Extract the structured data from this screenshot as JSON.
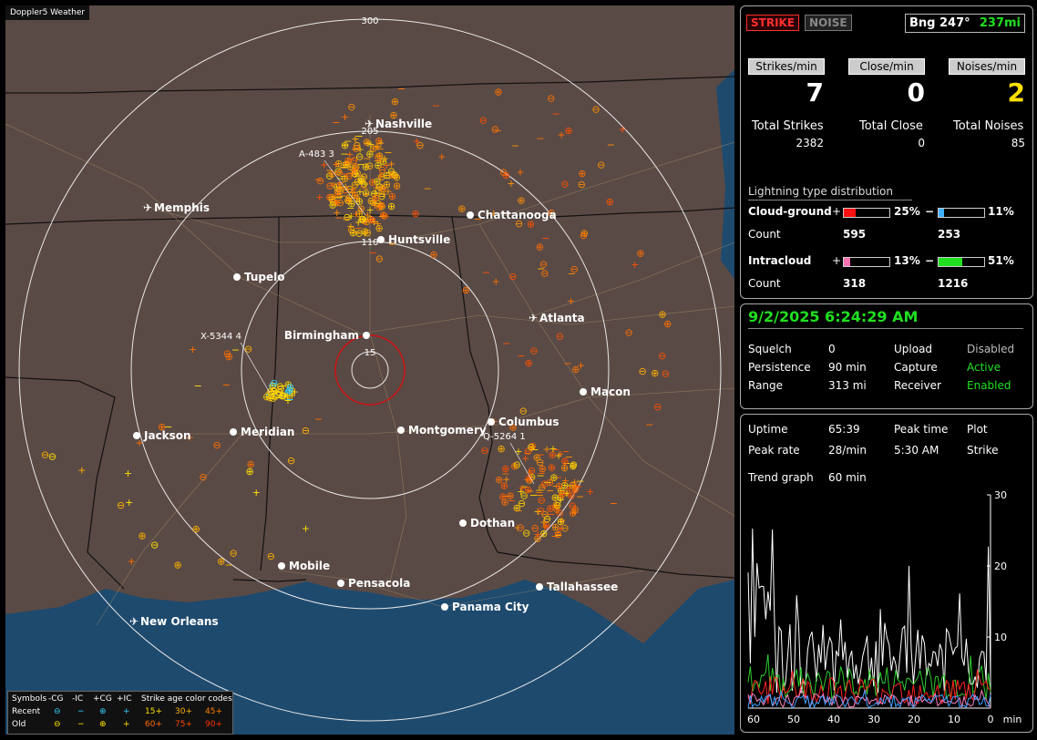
{
  "app": {
    "title": "Doppler5 Weather"
  },
  "map": {
    "range_labels": [
      "300",
      "205",
      "110",
      "15"
    ],
    "cities": [
      {
        "name": "Nashville",
        "type": "airport"
      },
      {
        "name": "Memphis",
        "type": "airport"
      },
      {
        "name": "Chattanooga",
        "type": "city"
      },
      {
        "name": "Huntsville",
        "type": "city"
      },
      {
        "name": "Tupelo",
        "type": "city"
      },
      {
        "name": "Atlanta",
        "type": "airport"
      },
      {
        "name": "Birmingham",
        "type": "city"
      },
      {
        "name": "Macon",
        "type": "city"
      },
      {
        "name": "Jackson",
        "type": "city"
      },
      {
        "name": "Meridian",
        "type": "city"
      },
      {
        "name": "Montgomery",
        "type": "city"
      },
      {
        "name": "Columbus",
        "type": "city"
      },
      {
        "name": "Dothan",
        "type": "city"
      },
      {
        "name": "Mobile",
        "type": "city"
      },
      {
        "name": "Pensacola",
        "type": "city"
      },
      {
        "name": "Tallahassee",
        "type": "city"
      },
      {
        "name": "Panama City",
        "type": "city"
      },
      {
        "name": "New Orleans",
        "type": "airport"
      }
    ],
    "storm_tags": [
      "A-483  3",
      "X-5344  4",
      "Q-5264  1"
    ]
  },
  "legend": {
    "header": [
      "Symbols",
      "-CG",
      "-IC",
      "+CG",
      "+IC",
      "Strike age color codes"
    ],
    "recent_label": "Recent",
    "old_label": "Old",
    "recent_ages": [
      "15+",
      "30+",
      "45+"
    ],
    "old_ages": [
      "60+",
      "75+",
      "90+"
    ]
  },
  "status": {
    "strike_label": "STRIKE",
    "noise_label": "NOISE",
    "bearing_label": "Bng 247°",
    "distance": "237mi",
    "rate_headers": [
      "Strikes/min",
      "Close/min",
      "Noises/min"
    ],
    "rates": {
      "strikes": "7",
      "close": "0",
      "noises": "2"
    },
    "totals_headers": [
      "Total Strikes",
      "Total Close",
      "Total Noises"
    ],
    "totals": {
      "strikes": "2382",
      "close": "0",
      "noises": "85"
    },
    "dist_title": "Lightning type distribution",
    "cloud_ground_label": "Cloud-ground",
    "intracloud_label": "Intracloud",
    "count_label": "Count",
    "plus": "+",
    "minus": "−",
    "cg_plus_pct": "25%",
    "cg_minus_pct": "11%",
    "cg_plus_count": "595",
    "cg_minus_count": "253",
    "ic_plus_pct": "13%",
    "ic_minus_pct": "51%",
    "ic_plus_count": "318",
    "ic_minus_count": "1216",
    "cg_plus_frac": 0.25,
    "cg_minus_frac": 0.11,
    "ic_plus_frac": 0.13,
    "ic_minus_frac": 0.51
  },
  "settings": {
    "datetime": "9/2/2025 6:24:29 AM",
    "squelch_label": "Squelch",
    "squelch": "0",
    "persistence_label": "Persistence",
    "persistence": "90 min",
    "range_label": "Range",
    "range": "313 mi",
    "upload_label": "Upload",
    "upload": "Disabled",
    "capture_label": "Capture",
    "capture": "Active",
    "receiver_label": "Receiver",
    "receiver": "Enabled"
  },
  "trend": {
    "uptime_label": "Uptime",
    "uptime": "65:39",
    "peak_time_label": "Peak time",
    "peak_time": "5:30 AM",
    "plot_label": "Plot",
    "plot": "Strike",
    "peak_rate_label": "Peak rate",
    "peak_rate": "28/min",
    "trend_graph_label": "Trend graph",
    "trend_graph": "60 min",
    "y_ticks": [
      "30",
      "20",
      "10"
    ],
    "x_ticks": [
      "60",
      "50",
      "40",
      "30",
      "20",
      "10",
      "0",
      "min"
    ],
    "colors": {
      "total": "#ffffff",
      "neg_ic": "#2ecc2e",
      "pos_cg": "#ff2020",
      "pos_ic": "#ff80c0",
      "neg_cg": "#40a0ff"
    }
  }
}
